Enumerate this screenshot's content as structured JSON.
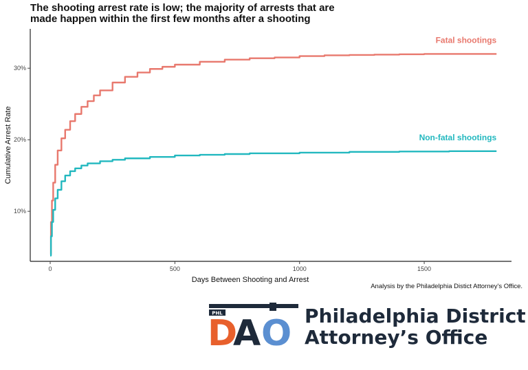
{
  "title": {
    "line1": "The shooting arrest rate is low; the majority of arrests that are",
    "line2": "made happen within the first few months after a shooting"
  },
  "caption": "Analysis by the Philadelphia Distict Attorney's Office.",
  "logo": {
    "badge": "PHL",
    "letter_d": "D",
    "letter_a": "A",
    "letter_o": "O",
    "line1": "Philadelphia District",
    "line2": "Attorney’s Office",
    "colors": {
      "d": "#e8602c",
      "a": "#1e2a3a",
      "o": "#5b8fd1",
      "badge_bg": "#1e2a3a"
    }
  },
  "chart_data": {
    "type": "line",
    "xlabel": "Days Between Shooting and Arrest",
    "ylabel": "Cumulative Arrest Rate",
    "xlim": [
      -80,
      1850
    ],
    "ylim": [
      3,
      35.5
    ],
    "xticks": [
      0,
      500,
      1000,
      1500
    ],
    "yticks": [
      10,
      20,
      30
    ],
    "ytick_labels": [
      "10%",
      "20%",
      "30%"
    ],
    "grid": false,
    "series": [
      {
        "name": "Fatal shootings",
        "color": "#e8786d",
        "x": [
          0,
          3,
          7,
          12,
          20,
          30,
          45,
          60,
          80,
          100,
          125,
          150,
          175,
          200,
          250,
          300,
          350,
          400,
          450,
          500,
          600,
          700,
          800,
          900,
          1000,
          1100,
          1200,
          1300,
          1400,
          1500,
          1600,
          1700,
          1790
        ],
        "y": [
          4.0,
          8.5,
          11.5,
          14.0,
          16.5,
          18.5,
          20.2,
          21.4,
          22.6,
          23.6,
          24.6,
          25.4,
          26.2,
          26.9,
          28.0,
          28.8,
          29.4,
          29.9,
          30.2,
          30.5,
          30.9,
          31.2,
          31.4,
          31.5,
          31.7,
          31.8,
          31.85,
          31.9,
          31.95,
          32.0,
          32.0,
          32.0,
          32.0
        ]
      },
      {
        "name": "Non-fatal shootings",
        "color": "#22b8bf",
        "x": [
          0,
          3,
          7,
          12,
          20,
          30,
          45,
          60,
          80,
          100,
          125,
          150,
          200,
          250,
          300,
          400,
          500,
          600,
          700,
          800,
          1000,
          1200,
          1400,
          1600,
          1790
        ],
        "y": [
          3.8,
          6.5,
          8.5,
          10.2,
          11.8,
          13.0,
          14.2,
          15.0,
          15.6,
          16.0,
          16.4,
          16.7,
          17.0,
          17.2,
          17.4,
          17.6,
          17.8,
          17.9,
          18.0,
          18.1,
          18.2,
          18.3,
          18.35,
          18.4,
          18.4
        ]
      }
    ]
  }
}
